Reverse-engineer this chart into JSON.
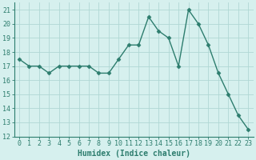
{
  "x": [
    0,
    1,
    2,
    3,
    4,
    5,
    6,
    7,
    8,
    9,
    10,
    11,
    12,
    13,
    14,
    15,
    16,
    17,
    18,
    19,
    20,
    21,
    22,
    23
  ],
  "y": [
    17.5,
    17.0,
    17.0,
    16.5,
    17.0,
    17.0,
    17.0,
    17.0,
    16.5,
    16.5,
    17.5,
    18.5,
    18.5,
    20.5,
    19.5,
    19.0,
    17.0,
    21.0,
    20.0,
    18.5,
    16.5,
    15.0,
    13.5,
    12.5
  ],
  "line_color": "#2d7d6e",
  "marker": "D",
  "marker_size": 2.5,
  "bg_color": "#d6f0ee",
  "grid_color": "#b0d8d4",
  "xlabel": "Humidex (Indice chaleur)",
  "ylim": [
    12,
    21.5
  ],
  "xlim": [
    -0.5,
    23.5
  ],
  "yticks": [
    12,
    13,
    14,
    15,
    16,
    17,
    18,
    19,
    20,
    21
  ],
  "xticks": [
    0,
    1,
    2,
    3,
    4,
    5,
    6,
    7,
    8,
    9,
    10,
    11,
    12,
    13,
    14,
    15,
    16,
    17,
    18,
    19,
    20,
    21,
    22,
    23
  ],
  "label_fontsize": 7,
  "tick_fontsize": 6
}
